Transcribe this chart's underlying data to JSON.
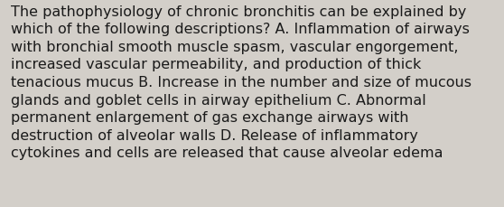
{
  "lines": [
    "The pathophysiology of chronic bronchitis can be explained by",
    "which of the following descriptions? A. Inflammation of airways",
    "with bronchial smooth muscle spasm, vascular engorgement,",
    "increased vascular permeability, and production of thick",
    "tenacious mucus B. Increase in the number and size of mucous",
    "glands and goblet cells in airway epithelium C. Abnormal",
    "permanent enlargement of gas exchange airways with",
    "destruction of alveolar walls D. Release of inflammatory",
    "cytokines and cells are released that cause alveolar edema"
  ],
  "background_color": "#d3cfc9",
  "text_color": "#1a1a1a",
  "font_size": 11.5,
  "fig_width": 5.58,
  "fig_height": 2.3,
  "dpi": 100
}
